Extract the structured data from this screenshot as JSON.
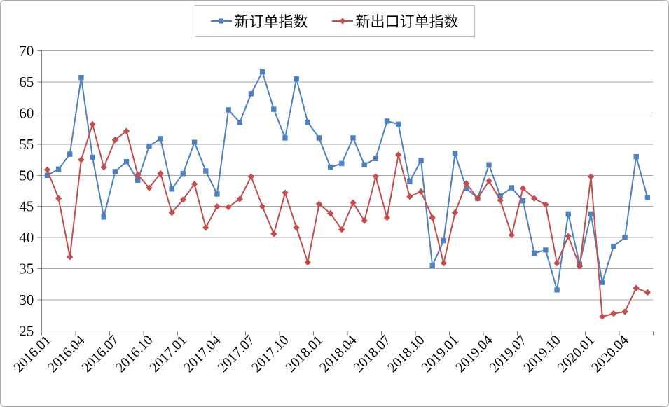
{
  "chart_data": {
    "type": "line",
    "categories": [
      "2016.01",
      "2016.02",
      "2016.03",
      "2016.04",
      "2016.05",
      "2016.06",
      "2016.07",
      "2016.08",
      "2016.09",
      "2016.10",
      "2016.11",
      "2016.12",
      "2017.01",
      "2017.02",
      "2017.03",
      "2017.04",
      "2017.05",
      "2017.06",
      "2017.07",
      "2017.08",
      "2017.09",
      "2017.10",
      "2017.11",
      "2017.12",
      "2018.01",
      "2018.02",
      "2018.03",
      "2018.04",
      "2018.05",
      "2018.06",
      "2018.07",
      "2018.08",
      "2018.09",
      "2018.10",
      "2018.11",
      "2018.12",
      "2019.01",
      "2019.02",
      "2019.03",
      "2019.04",
      "2019.05",
      "2019.06",
      "2019.07",
      "2019.08",
      "2019.09",
      "2019.10",
      "2019.11",
      "2019.12",
      "2020.01",
      "2020.02",
      "2020.03",
      "2020.04",
      "2020.05",
      "2020.06"
    ],
    "x_tick_labels": [
      "2016.01",
      "2016.04",
      "2016.07",
      "2016.10",
      "2017.01",
      "2017.04",
      "2017.07",
      "2017.10",
      "2018.01",
      "2018.04",
      "2018.07",
      "2018.10",
      "2019.01",
      "2019.04",
      "2019.07",
      "2019.10",
      "2020.01",
      "2020.04"
    ],
    "x_label_interval": 3,
    "series": [
      {
        "name": "新订单指数",
        "color": "#4f81bd",
        "marker": "square",
        "values": [
          50.0,
          51.0,
          53.4,
          65.7,
          52.9,
          43.3,
          50.6,
          52.2,
          49.2,
          54.7,
          55.9,
          47.8,
          50.3,
          55.3,
          50.7,
          47.0,
          60.5,
          58.5,
          63.1,
          66.6,
          60.6,
          56.0,
          65.5,
          58.5,
          56.0,
          51.3,
          51.9,
          56.0,
          51.7,
          52.7,
          58.7,
          58.2,
          49.0,
          52.4,
          35.5,
          39.5,
          53.5,
          47.9,
          46.3,
          51.7,
          46.7,
          48.0,
          45.9,
          37.5,
          38.0,
          31.6,
          43.8,
          35.7,
          43.8,
          32.8,
          38.6,
          40.0,
          53.0,
          46.4
        ]
      },
      {
        "name": "新出口订单指数",
        "color": "#c0504d",
        "marker": "diamond",
        "values": [
          50.9,
          46.3,
          36.9,
          52.5,
          58.2,
          51.3,
          55.7,
          57.1,
          50.1,
          48.0,
          50.3,
          44.0,
          46.1,
          48.6,
          41.6,
          45.0,
          44.9,
          46.2,
          49.8,
          45.0,
          40.6,
          47.2,
          41.6,
          36.0,
          45.4,
          43.9,
          41.3,
          45.6,
          42.7,
          49.8,
          43.2,
          53.3,
          46.6,
          47.4,
          43.2,
          35.9,
          44.0,
          48.7,
          46.3,
          49.1,
          46.0,
          40.4,
          47.9,
          46.3,
          45.3,
          35.9,
          40.2,
          35.4,
          49.8,
          27.3,
          27.8,
          28.1,
          31.9,
          31.2
        ]
      }
    ],
    "ylim": [
      25,
      70
    ],
    "y_tick_step": 5,
    "y_tick_labels": [
      "25",
      "30",
      "35",
      "40",
      "45",
      "50",
      "55",
      "60",
      "65",
      "70"
    ],
    "grid": "horizontal",
    "legend_position": "top",
    "title": "",
    "xlabel": "",
    "ylabel": "",
    "colors": {
      "grid": "#a6a6a6",
      "axis": "#808080",
      "text": "#000000"
    }
  }
}
